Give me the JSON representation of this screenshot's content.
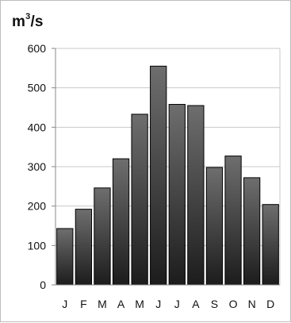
{
  "chart_data": {
    "type": "bar",
    "title": "",
    "xlabel": "",
    "ylabel": {
      "base": "m",
      "sup": "3",
      "rest": "/s"
    },
    "categories": [
      "J",
      "F",
      "M",
      "A",
      "M",
      "J",
      "J",
      "A",
      "S",
      "O",
      "N",
      "D"
    ],
    "values": [
      143,
      192,
      246,
      320,
      433,
      555,
      458,
      455,
      298,
      327,
      272,
      204
    ],
    "ylim": [
      0,
      600
    ],
    "yticks": [
      0,
      100,
      200,
      300,
      400,
      500,
      600
    ],
    "grid": true,
    "legend": "none",
    "colors": {
      "bar_fill_top": "#6e6e6e",
      "bar_fill_bottom": "#1c1c1c",
      "bar_edge": "#000000",
      "grid": "#c8c8c8",
      "axis": "#888888"
    }
  }
}
